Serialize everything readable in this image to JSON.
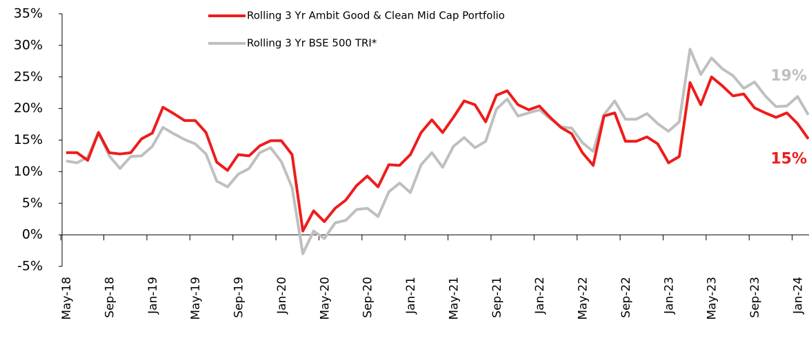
{
  "chart_data": {
    "type": "line",
    "categories": [
      "May-18",
      null,
      null,
      null,
      "Sep-18",
      null,
      null,
      null,
      "Jan-19",
      null,
      null,
      null,
      "May-19",
      null,
      null,
      null,
      "Sep-19",
      null,
      null,
      null,
      "Jan-20",
      null,
      null,
      null,
      "May-20",
      null,
      null,
      null,
      "Sep-20",
      null,
      null,
      null,
      "Jan-21",
      null,
      null,
      null,
      "May-21",
      null,
      null,
      null,
      "Sep-21",
      null,
      null,
      null,
      "Jan-22",
      null,
      null,
      null,
      "May-22",
      null,
      null,
      null,
      "Sep-22",
      null,
      null,
      null,
      "Jan-23",
      null,
      null,
      null,
      "May-23",
      null,
      null,
      null,
      "Sep-23",
      null,
      null,
      null,
      "Jan-24",
      null
    ],
    "series": [
      {
        "name": "Rolling 3 Yr Ambit Good & Clean Mid Cap Portfolio",
        "color": "#ee1c1c",
        "values": [
          13.0,
          13.0,
          11.8,
          16.2,
          13.0,
          12.8,
          13.0,
          15.2,
          16.1,
          20.2,
          19.2,
          18.1,
          18.1,
          16.2,
          11.5,
          10.2,
          12.7,
          12.5,
          14.1,
          14.9,
          14.9,
          12.7,
          0.6,
          3.8,
          2.1,
          4.2,
          5.5,
          7.8,
          9.3,
          7.6,
          11.1,
          11.0,
          12.7,
          16.2,
          18.2,
          16.2,
          18.6,
          21.2,
          20.6,
          17.9,
          22.1,
          22.8,
          20.6,
          19.8,
          20.4,
          18.6,
          17.0,
          16.0,
          13.0,
          11.0,
          18.8,
          19.3,
          14.8,
          14.8,
          15.5,
          14.4,
          11.4,
          12.4,
          24.1,
          20.6,
          25.0,
          23.6,
          22.0,
          22.3,
          20.1,
          19.3,
          18.6,
          19.3,
          17.6,
          15.2
        ],
        "value_labels": [
          null,
          null,
          null,
          null,
          null,
          null,
          null,
          null,
          null,
          null,
          null,
          null,
          null,
          null,
          null,
          null,
          null,
          null,
          null,
          null,
          null,
          null,
          null,
          null,
          null,
          null,
          null,
          null,
          null,
          null,
          null,
          null,
          null,
          null,
          null,
          null,
          null,
          null,
          null,
          null,
          null,
          null,
          null,
          null,
          null,
          null,
          null,
          null,
          null,
          null,
          null,
          null,
          null,
          null,
          null,
          null,
          null,
          null,
          null,
          null,
          null,
          null,
          null,
          null,
          null,
          null,
          null,
          null,
          null,
          "15%"
        ]
      },
      {
        "name": "Rolling 3 Yr BSE 500 TRI*",
        "color": "#bfbfbf",
        "values": [
          11.7,
          11.4,
          12.3,
          16.2,
          12.5,
          10.5,
          12.4,
          12.5,
          14.0,
          17.0,
          16.0,
          15.1,
          14.4,
          12.8,
          8.5,
          7.6,
          9.6,
          10.5,
          13.0,
          13.8,
          11.6,
          7.5,
          -3.0,
          0.6,
          -0.6,
          1.9,
          2.3,
          4.0,
          4.2,
          2.9,
          6.8,
          8.2,
          6.7,
          11.1,
          13.0,
          10.7,
          14.0,
          15.4,
          13.8,
          14.8,
          19.9,
          21.5,
          18.8,
          19.3,
          19.8,
          18.4,
          17.1,
          16.9,
          14.6,
          13.2,
          19.0,
          21.2,
          18.3,
          18.3,
          19.2,
          17.6,
          16.4,
          17.9,
          29.4,
          25.4,
          28.0,
          26.3,
          25.2,
          23.2,
          24.2,
          22.0,
          20.3,
          20.4,
          21.9,
          19.0
        ],
        "value_labels": [
          null,
          null,
          null,
          null,
          null,
          null,
          null,
          null,
          null,
          null,
          null,
          null,
          null,
          null,
          null,
          null,
          null,
          null,
          null,
          null,
          null,
          null,
          null,
          null,
          null,
          null,
          null,
          null,
          null,
          null,
          null,
          null,
          null,
          null,
          null,
          null,
          null,
          null,
          null,
          null,
          null,
          null,
          null,
          null,
          null,
          null,
          null,
          null,
          null,
          null,
          null,
          null,
          null,
          null,
          null,
          null,
          null,
          null,
          null,
          null,
          null,
          null,
          null,
          null,
          null,
          null,
          null,
          null,
          null,
          "19%"
        ]
      }
    ],
    "ylim": [
      -5,
      35
    ],
    "yticks": [
      {
        "value": -5,
        "label": "-5%"
      },
      {
        "value": 0,
        "label": "0%"
      },
      {
        "value": 5,
        "label": "5%"
      },
      {
        "value": 10,
        "label": "10%"
      },
      {
        "value": 15,
        "label": "15%"
      },
      {
        "value": 20,
        "label": "20%"
      },
      {
        "value": 25,
        "label": "25%"
      },
      {
        "value": 30,
        "label": "30%"
      },
      {
        "value": 35,
        "label": "35%"
      }
    ],
    "legend": "top",
    "grid": false
  }
}
